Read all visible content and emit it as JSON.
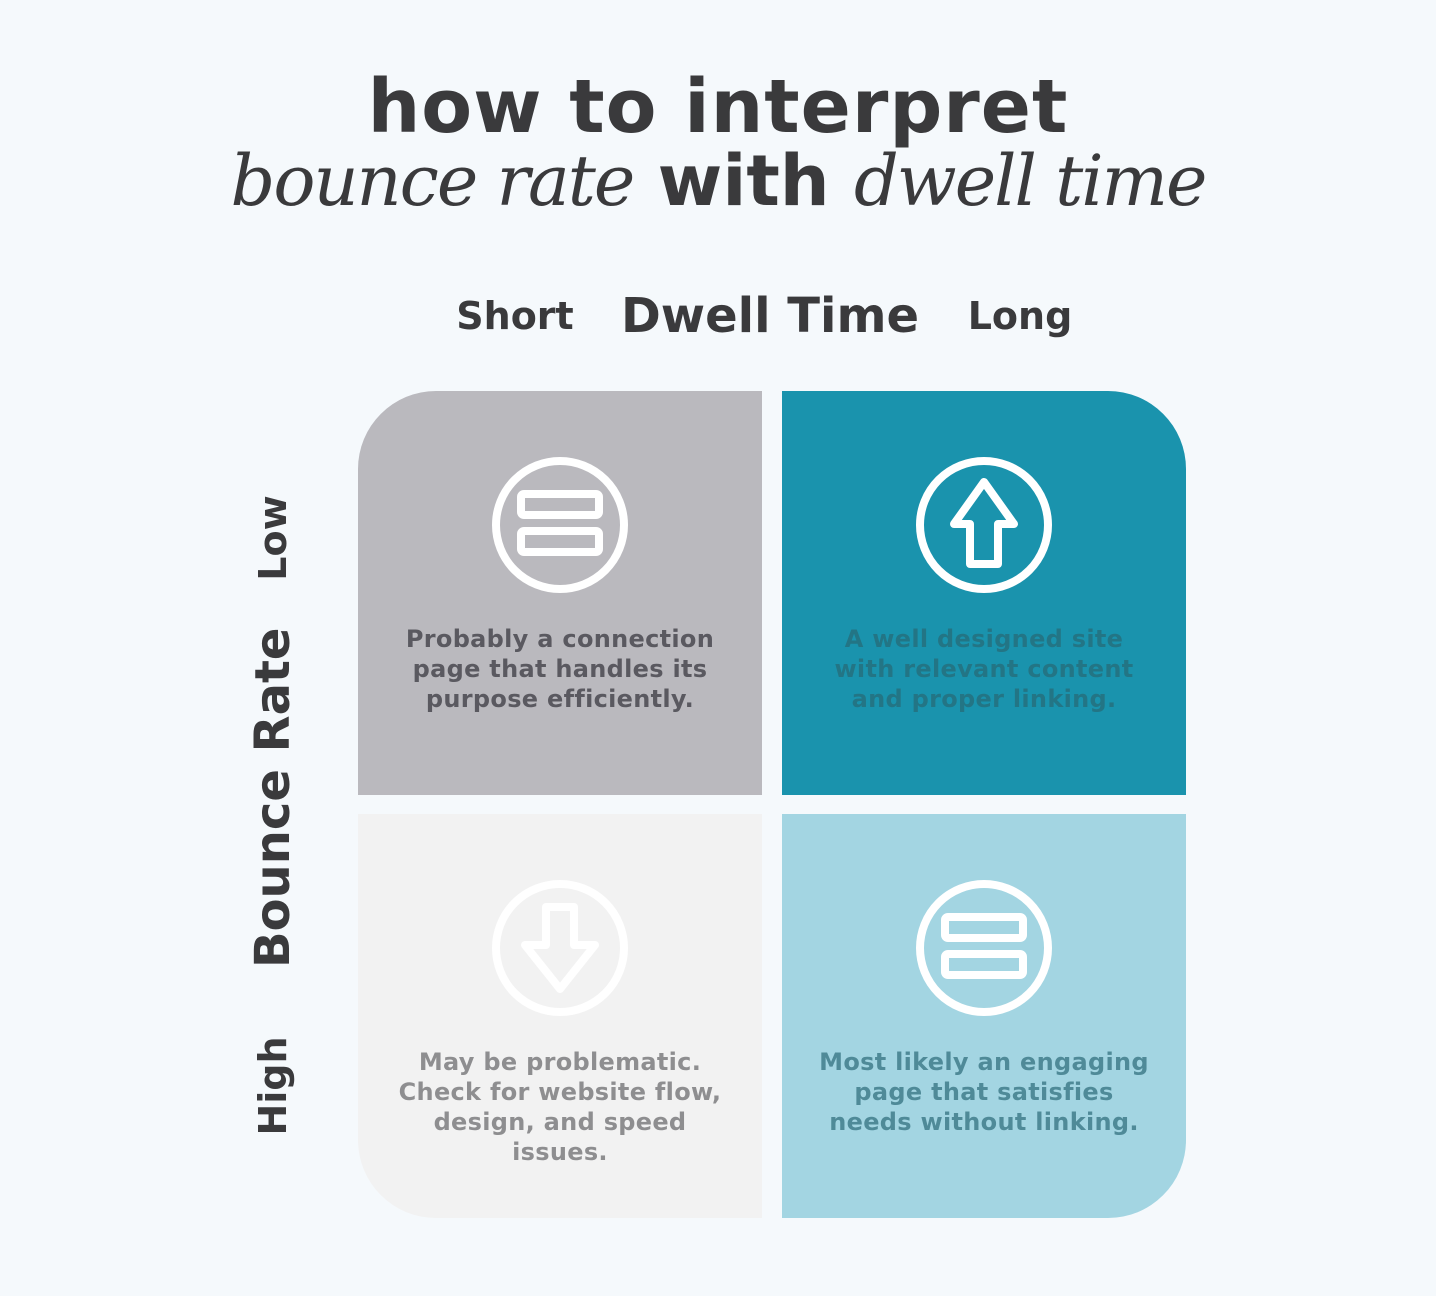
{
  "title": {
    "line1": "how to interpret",
    "line2_part1": "bounce rate",
    "line2_part2": " with ",
    "line2_part3": "dwell time"
  },
  "x_axis": {
    "title": "Dwell Time",
    "low_label": "Short",
    "high_label": "Long"
  },
  "y_axis": {
    "title": "Bounce Rate",
    "top_label": "Low",
    "bottom_label": "High"
  },
  "quadrants": {
    "low_bounce_short_dwell": {
      "icon": "equals-icon",
      "text": "Probably a connection page that handles its purpose efficiently.",
      "color": "#bab9be"
    },
    "low_bounce_long_dwell": {
      "icon": "arrow-up-icon",
      "text": "A well designed site with relevant content and proper linking.",
      "color": "#1a93ad"
    },
    "high_bounce_short_dwell": {
      "icon": "arrow-down-icon",
      "text": "May be problematic. Check for website flow, design, and speed issues.",
      "color": "#f2f2f2"
    },
    "high_bounce_long_dwell": {
      "icon": "equals-icon",
      "text": "Most likely an engaging page that satisfies needs without linking.",
      "color": "#a3d5e2"
    }
  }
}
